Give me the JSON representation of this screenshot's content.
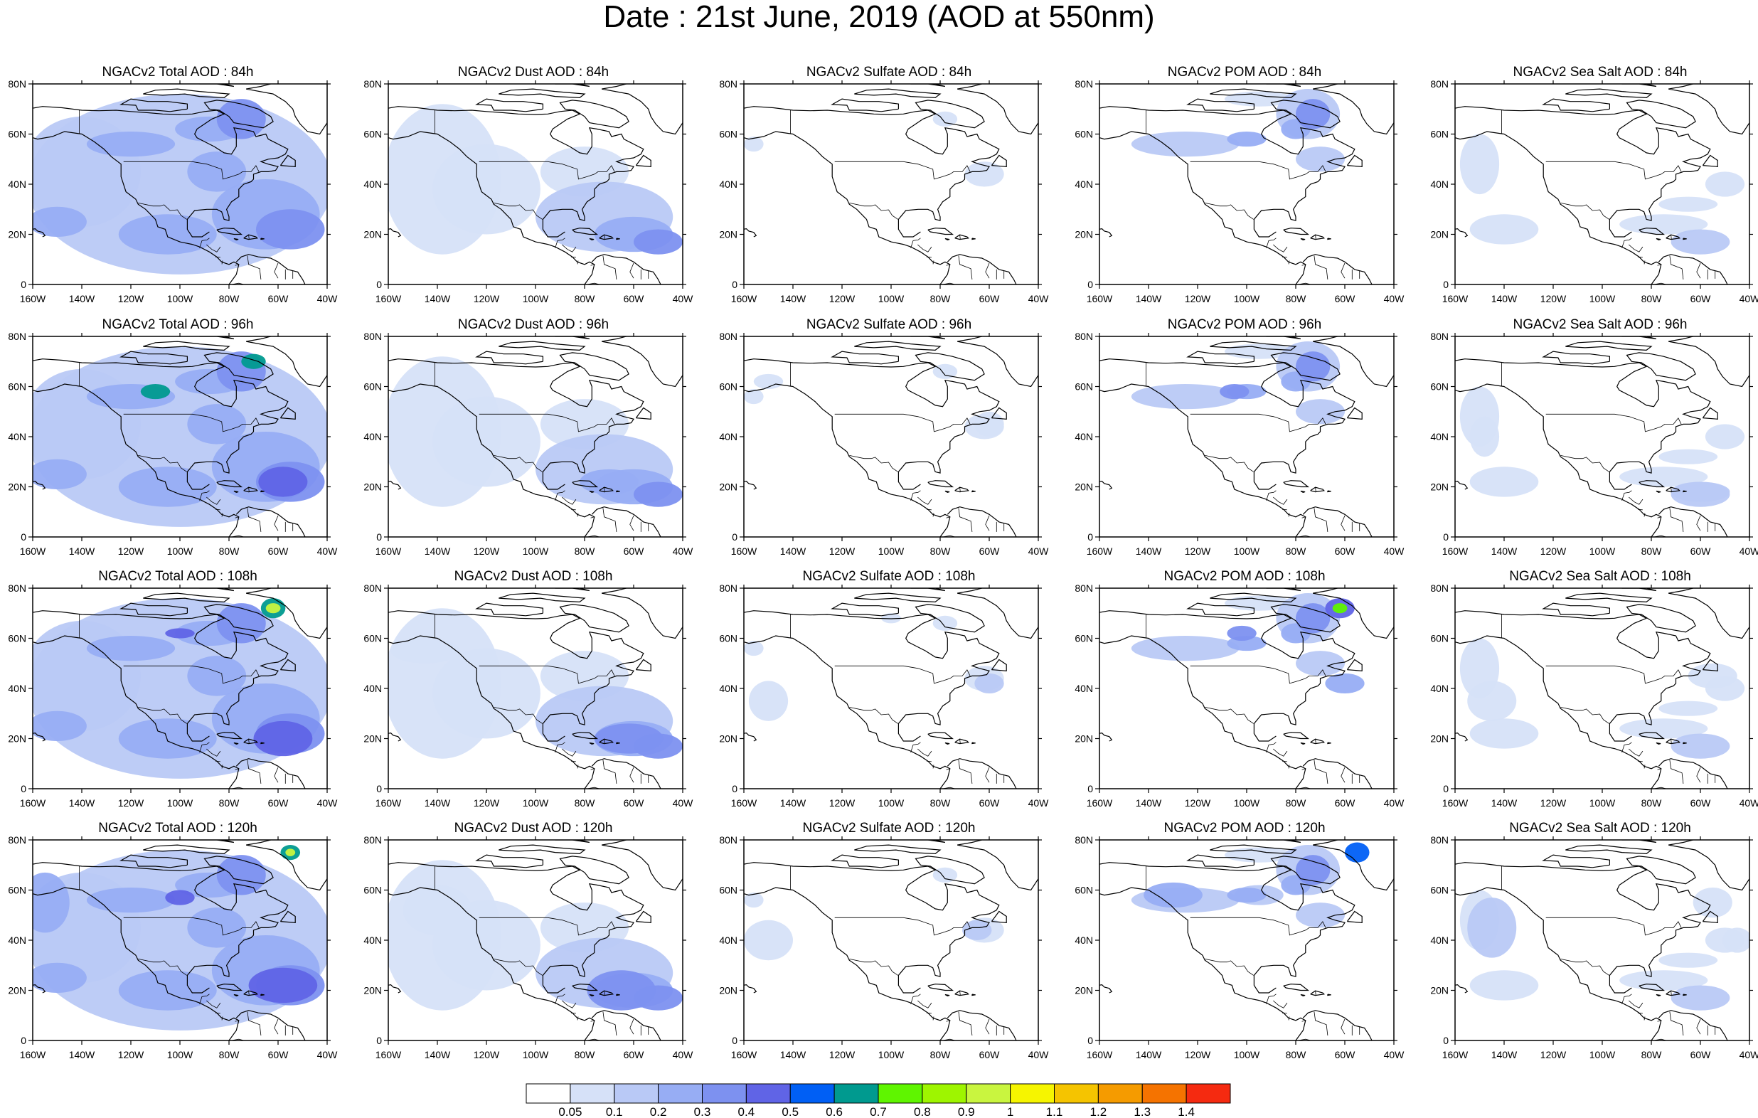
{
  "title": "Date : 21st June, 2019 (AOD at 550nm)",
  "panels": [
    {
      "label": "NGACv2 Total AOD : 84h",
      "species": "total",
      "hour": 84
    },
    {
      "label": "NGACv2 Dust AOD : 84h",
      "species": "dust",
      "hour": 84
    },
    {
      "label": "NGACv2 Sulfate AOD : 84h",
      "species": "sulfate",
      "hour": 84
    },
    {
      "label": "NGACv2 POM AOD : 84h",
      "species": "pom",
      "hour": 84
    },
    {
      "label": "NGACv2 Sea Salt AOD : 84h",
      "species": "seasalt",
      "hour": 84
    },
    {
      "label": "NGACv2 Total AOD : 96h",
      "species": "total",
      "hour": 96
    },
    {
      "label": "NGACv2 Dust AOD : 96h",
      "species": "dust",
      "hour": 96
    },
    {
      "label": "NGACv2 Sulfate AOD : 96h",
      "species": "sulfate",
      "hour": 96
    },
    {
      "label": "NGACv2 POM AOD : 96h",
      "species": "pom",
      "hour": 96
    },
    {
      "label": "NGACv2 Sea Salt AOD : 96h",
      "species": "seasalt",
      "hour": 96
    },
    {
      "label": "NGACv2 Total AOD : 108h",
      "species": "total",
      "hour": 108
    },
    {
      "label": "NGACv2 Dust AOD : 108h",
      "species": "dust",
      "hour": 108
    },
    {
      "label": "NGACv2 Sulfate AOD : 108h",
      "species": "sulfate",
      "hour": 108
    },
    {
      "label": "NGACv2 POM AOD : 108h",
      "species": "pom",
      "hour": 108
    },
    {
      "label": "NGACv2 Sea Salt AOD : 108h",
      "species": "seasalt",
      "hour": 108
    },
    {
      "label": "NGACv2 Total AOD : 120h",
      "species": "total",
      "hour": 120
    },
    {
      "label": "NGACv2 Dust AOD : 120h",
      "species": "dust",
      "hour": 120
    },
    {
      "label": "NGACv2 Sulfate AOD : 120h",
      "species": "sulfate",
      "hour": 120
    },
    {
      "label": "NGACv2 POM AOD : 120h",
      "species": "pom",
      "hour": 120
    },
    {
      "label": "NGACv2 Sea Salt  AOD : 120h",
      "species": "seasalt",
      "hour": 120
    }
  ],
  "axes": {
    "lon_ticks": [
      "160W",
      "140W",
      "120W",
      "100W",
      "80W",
      "60W",
      "40W"
    ],
    "lat_ticks": [
      "0",
      "20N",
      "40N",
      "60N",
      "80N"
    ],
    "lon_range": [
      -160,
      -40
    ],
    "lat_range": [
      0,
      80
    ]
  },
  "colorbar": {
    "levels": [
      "0.05",
      "0.1",
      "0.2",
      "0.3",
      "0.4",
      "0.5",
      "0.6",
      "0.7",
      "0.8",
      "0.9",
      "1",
      "1.1",
      "1.2",
      "1.3",
      "1.4"
    ],
    "colors": [
      "#ffffff",
      "#d6e1f8",
      "#b9c9f6",
      "#97adf4",
      "#7d91f0",
      "#6064e6",
      "#005ff5",
      "#009a8f",
      "#5ff500",
      "#9ef500",
      "#c9f53f",
      "#f6f500",
      "#f5c400",
      "#f59b00",
      "#f57300",
      "#f52a10"
    ]
  },
  "colors": {
    "coastline": "#000000",
    "frame": "#000000"
  }
}
